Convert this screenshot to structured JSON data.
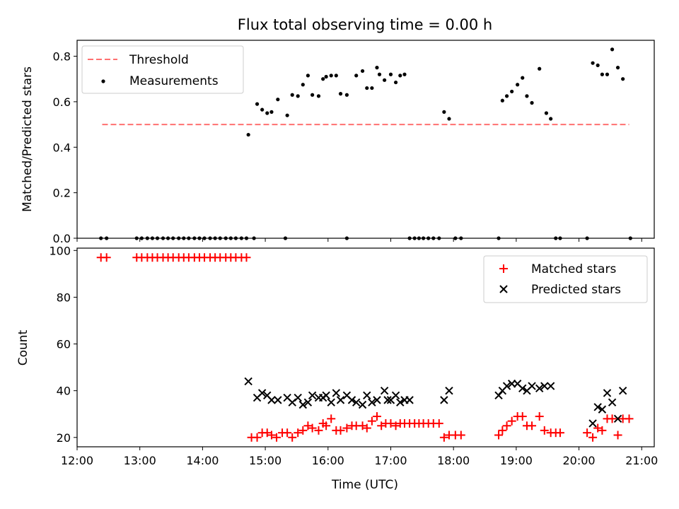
{
  "figure": {
    "title": "Flux total observing time = 0.00 h"
  },
  "chart_data": [
    {
      "type": "scatter",
      "xlabel": "",
      "ylabel": "Matched/Predicted stars",
      "xlim": [
        12.0,
        21.2
      ],
      "ylim": [
        0.0,
        0.87
      ],
      "yticks": [
        0.0,
        0.2,
        0.4,
        0.6,
        0.8
      ],
      "ytick_labels": [
        "0.0",
        "0.2",
        "0.4",
        "0.6",
        "0.8"
      ],
      "legend": {
        "placement": "top-left",
        "entries": [
          "Threshold",
          "Measurements"
        ]
      },
      "grid": false,
      "threshold": {
        "name": "Threshold",
        "value": 0.5,
        "x": [
          12.4,
          20.8
        ],
        "color": "#ff7070"
      },
      "measurements": {
        "name": "Measurements",
        "color": "#000000",
        "x": [
          12.38,
          12.47,
          12.95,
          13.03,
          13.12,
          13.2,
          13.28,
          13.37,
          13.45,
          13.53,
          13.62,
          13.7,
          13.78,
          13.87,
          13.95,
          14.03,
          14.12,
          14.2,
          14.28,
          14.37,
          14.45,
          14.53,
          14.62,
          14.7,
          14.82,
          14.73,
          14.87,
          14.95,
          15.03,
          15.1,
          15.2,
          15.35,
          15.43,
          15.52,
          15.6,
          15.68,
          15.75,
          15.85,
          15.92,
          15.97,
          16.05,
          16.13,
          16.2,
          16.3,
          16.45,
          16.55,
          16.62,
          16.7,
          16.78,
          16.82,
          16.9,
          17.0,
          17.08,
          17.15,
          17.22,
          17.3,
          17.38,
          17.45,
          17.52,
          17.6,
          17.68,
          17.77,
          17.85,
          17.93,
          18.03,
          18.12,
          18.72,
          18.78,
          18.85,
          18.93,
          19.02,
          19.1,
          19.17,
          19.25,
          19.37,
          19.48,
          19.55,
          19.63,
          19.7,
          20.13,
          20.22,
          20.3,
          20.37,
          20.45,
          20.53,
          20.62,
          20.7,
          20.82,
          15.32,
          16.3
        ],
        "y": [
          0.0,
          0.0,
          0.0,
          0.0,
          0.0,
          0.0,
          0.0,
          0.0,
          0.0,
          0.0,
          0.0,
          0.0,
          0.0,
          0.0,
          0.0,
          0.0,
          0.0,
          0.0,
          0.0,
          0.0,
          0.0,
          0.0,
          0.0,
          0.0,
          0.0,
          0.455,
          0.59,
          0.565,
          0.55,
          0.555,
          0.61,
          0.54,
          0.63,
          0.625,
          0.675,
          0.715,
          0.63,
          0.625,
          0.7,
          0.71,
          0.715,
          0.715,
          0.635,
          0.63,
          0.715,
          0.735,
          0.66,
          0.66,
          0.75,
          0.72,
          0.695,
          0.72,
          0.685,
          0.715,
          0.72,
          0.0,
          0.0,
          0.0,
          0.0,
          0.0,
          0.0,
          0.0,
          0.555,
          0.525,
          0.0,
          0.0,
          0.0,
          0.605,
          0.625,
          0.645,
          0.675,
          0.705,
          0.625,
          0.595,
          0.745,
          0.55,
          0.525,
          0.0,
          0.0,
          0.0,
          0.77,
          0.76,
          0.72,
          0.72,
          0.83,
          0.75,
          0.7,
          0.0,
          0.0,
          0.0
        ]
      }
    },
    {
      "type": "scatter",
      "xlabel": "Time (UTC)",
      "ylabel": "Count",
      "xlim": [
        12.0,
        21.2
      ],
      "ylim": [
        16.0,
        101.0
      ],
      "yticks": [
        20,
        40,
        60,
        80,
        100
      ],
      "ytick_labels": [
        "20",
        "40",
        "60",
        "80",
        "100"
      ],
      "xticks": [
        12,
        13,
        14,
        15,
        16,
        17,
        18,
        19,
        20,
        21
      ],
      "xtick_labels": [
        "12:00",
        "13:00",
        "14:00",
        "15:00",
        "16:00",
        "17:00",
        "18:00",
        "19:00",
        "20:00",
        "21:00"
      ],
      "legend": {
        "placement": "top-right",
        "entries": [
          "Matched stars",
          "Predicted stars"
        ]
      },
      "grid": false,
      "series": [
        {
          "name": "Matched stars",
          "marker": "plus",
          "color": "#ff0000",
          "x": [
            12.38,
            12.47,
            12.95,
            13.03,
            13.12,
            13.2,
            13.28,
            13.37,
            13.45,
            13.53,
            13.62,
            13.7,
            13.78,
            13.87,
            13.95,
            14.03,
            14.12,
            14.2,
            14.28,
            14.37,
            14.45,
            14.53,
            14.62,
            14.7,
            14.78,
            14.87,
            14.95,
            15.03,
            15.1,
            15.18,
            15.27,
            15.35,
            15.43,
            15.52,
            15.6,
            15.68,
            15.75,
            15.85,
            15.92,
            15.97,
            16.05,
            16.13,
            16.2,
            16.3,
            16.38,
            16.45,
            16.55,
            16.62,
            16.7,
            16.78,
            16.85,
            16.92,
            17.0,
            17.08,
            17.15,
            17.22,
            17.3,
            17.38,
            17.45,
            17.52,
            17.6,
            17.68,
            17.77,
            17.85,
            17.93,
            18.03,
            18.12,
            18.72,
            18.78,
            18.85,
            18.93,
            19.02,
            19.1,
            19.17,
            19.25,
            19.37,
            19.45,
            19.55,
            19.63,
            19.7,
            20.13,
            20.22,
            20.3,
            20.37,
            20.45,
            20.53,
            20.62,
            20.7,
            20.8
          ],
          "y": [
            97,
            97,
            97,
            97,
            97,
            97,
            97,
            97,
            97,
            97,
            97,
            97,
            97,
            97,
            97,
            97,
            97,
            97,
            97,
            97,
            97,
            97,
            97,
            97,
            20,
            20,
            22,
            22,
            21,
            20,
            22,
            22,
            20,
            22,
            23,
            25,
            24,
            23,
            26,
            25,
            28,
            23,
            23,
            24,
            25,
            25,
            25,
            24,
            27,
            29,
            25,
            26,
            26,
            25,
            26,
            26,
            26,
            26,
            26,
            26,
            26,
            26,
            26,
            20,
            21,
            21,
            21,
            21,
            23,
            25,
            27,
            29,
            29,
            25,
            25,
            29,
            23,
            22,
            22,
            22,
            22,
            20,
            24,
            23,
            28,
            28,
            21,
            28,
            28
          ]
        },
        {
          "name": "Predicted stars",
          "marker": "x",
          "color": "#000000",
          "x": [
            14.73,
            14.87,
            14.95,
            15.03,
            15.1,
            15.2,
            15.35,
            15.43,
            15.52,
            15.6,
            15.68,
            15.75,
            15.85,
            15.92,
            15.97,
            16.05,
            16.13,
            16.2,
            16.3,
            16.38,
            16.45,
            16.55,
            16.62,
            16.7,
            16.78,
            16.9,
            16.95,
            17.0,
            17.08,
            17.15,
            17.22,
            17.3,
            17.85,
            17.93,
            18.72,
            18.78,
            18.85,
            18.93,
            19.02,
            19.1,
            19.17,
            19.25,
            19.37,
            19.45,
            19.55,
            20.22,
            20.3,
            20.37,
            20.45,
            20.53,
            20.62,
            20.7
          ],
          "y": [
            44,
            37,
            39,
            38,
            36,
            36,
            37,
            35,
            37,
            34,
            35,
            38,
            37,
            37,
            38,
            35,
            39,
            36,
            38,
            36,
            35,
            34,
            38,
            35,
            36,
            40,
            36,
            36,
            38,
            35,
            36,
            36,
            36,
            40,
            38,
            40,
            42,
            43,
            43,
            41,
            40,
            42,
            41,
            42,
            42,
            26,
            33,
            32,
            39,
            35,
            28,
            40
          ]
        }
      ]
    }
  ]
}
